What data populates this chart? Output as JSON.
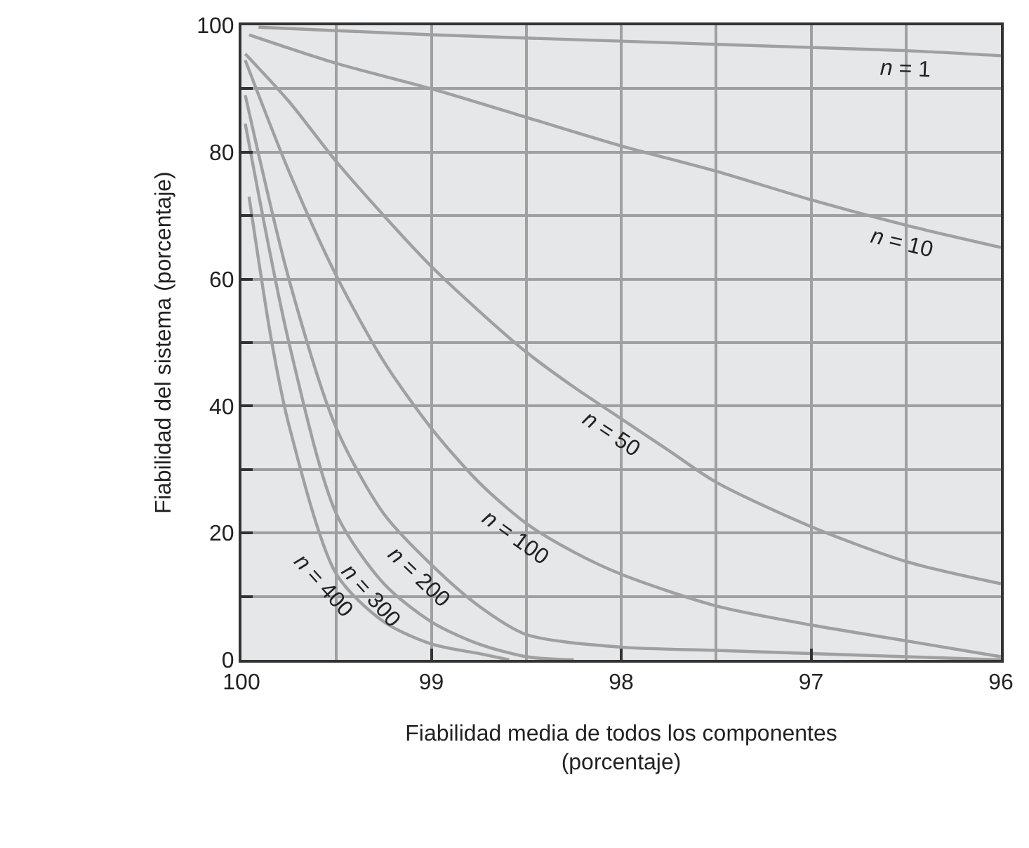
{
  "chart_data": {
    "type": "line",
    "xlabel": "Fiabilidad media de todos los componentes\n(porcentaje)",
    "ylabel": "Fiabilidad del sistema (porcentaje)",
    "xlim": [
      100,
      96
    ],
    "ylim": [
      0,
      100
    ],
    "xticks": [
      100,
      99,
      98,
      97,
      96
    ],
    "yticks": [
      0,
      20,
      40,
      60,
      80,
      100
    ],
    "grid": true,
    "marker": "none",
    "line_style": "solid",
    "series": [
      {
        "color": "#a0a0a0",
        "x": [
          99.91,
          99,
          98,
          97,
          96.5,
          96
        ],
        "values": [
          99.7,
          98.5,
          97.5,
          96.5,
          96,
          95.2
        ]
      },
      {
        "color": "#a0a0a0",
        "x": [
          99.96,
          99.5,
          99.0,
          98.5,
          98.0,
          97.5,
          97.0,
          96.5,
          96
        ],
        "values": [
          98.5,
          94,
          90,
          85.5,
          81,
          77,
          72.5,
          68.5,
          65
        ]
      },
      {
        "color": "#a0a0a0",
        "x": [
          99.98,
          99.75,
          99.5,
          99.25,
          99.0,
          98.75,
          98.5,
          98.25,
          98.0,
          97.75,
          97.5,
          97.0,
          96.5,
          96
        ],
        "values": [
          95.5,
          88,
          78.5,
          70,
          62,
          55,
          48.5,
          43,
          38,
          33,
          28,
          21,
          15.5,
          12
        ]
      },
      {
        "color": "#a0a0a0",
        "x": [
          99.98,
          99.75,
          99.5,
          99.25,
          99.0,
          98.75,
          98.5,
          98.25,
          98.0,
          97.5,
          97.0,
          96.5,
          96
        ],
        "values": [
          94.5,
          77,
          60.5,
          47,
          36.5,
          28,
          21.5,
          17,
          13.5,
          8.5,
          5.5,
          3,
          0.5
        ]
      },
      {
        "color": "#a0a0a0",
        "x": [
          99.98,
          99.75,
          99.5,
          99.25,
          99.0,
          98.75,
          98.5,
          98.0,
          97.5,
          97.0,
          96.5,
          96
        ],
        "values": [
          89,
          60,
          36.5,
          23,
          15,
          8.5,
          4,
          2,
          1.5,
          1,
          0.5,
          0
        ]
      },
      {
        "color": "#a0a0a0",
        "x": [
          99.98,
          99.75,
          99.5,
          99.25,
          99.0,
          98.75,
          98.5,
          98.25
        ],
        "values": [
          84.5,
          50,
          23,
          12,
          6,
          2.5,
          0.5,
          0
        ]
      },
      {
        "color": "#a0a0a0",
        "x": [
          99.96,
          99.84,
          99.75,
          99.5,
          99.25,
          99.0,
          98.75,
          98.59
        ],
        "values": [
          73,
          50,
          37,
          13.5,
          6,
          2.5,
          1,
          0
        ]
      }
    ],
    "annotations": [
      {
        "text": "n = 1",
        "x": 96.5,
        "y": 96
      },
      {
        "text": "n = 10",
        "x": 96.5,
        "y": 68.5
      },
      {
        "text": "n = 50",
        "x": 98.0,
        "y": 38
      },
      {
        "text": "n = 100",
        "x": 98.5,
        "y": 21.5
      },
      {
        "text": "n = 200",
        "x": 99.0,
        "y": 15
      },
      {
        "text": "n = 300",
        "x": 99.25,
        "y": 12
      },
      {
        "text": "n = 400",
        "x": 99.5,
        "y": 13.5
      }
    ]
  }
}
